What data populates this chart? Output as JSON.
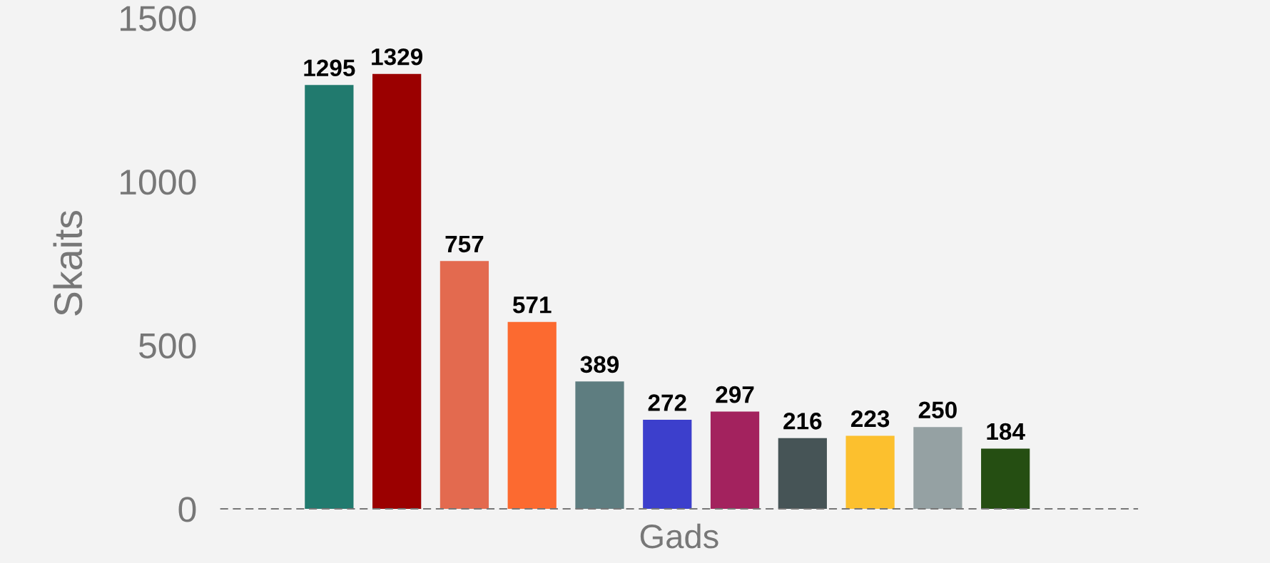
{
  "chart_data": {
    "type": "bar",
    "xlabel": "Gads",
    "ylabel": "Skaits",
    "categories": [
      null,
      null,
      null,
      null,
      null,
      null,
      null,
      null,
      null,
      null,
      null
    ],
    "values": [
      1295,
      1329,
      757,
      571,
      389,
      272,
      297,
      216,
      223,
      250,
      184
    ],
    "colors": [
      "#217a6e",
      "#9b0000",
      "#e36a4f",
      "#fc6a30",
      "#5e7d80",
      "#3c3fcc",
      "#a3225e",
      "#465456",
      "#fcc02e",
      "#95a1a3",
      "#254e12"
    ],
    "ylim": [
      0,
      1500
    ],
    "yticks": [
      0,
      500,
      1000,
      1500
    ],
    "data_labels": true,
    "grid": false,
    "legend": false
  }
}
